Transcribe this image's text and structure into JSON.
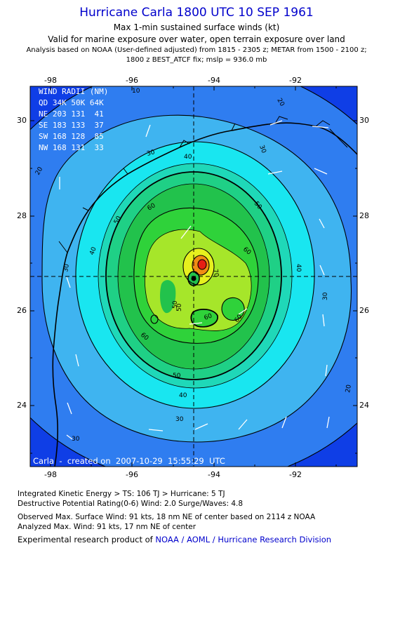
{
  "header": {
    "title": "Hurricane Carla 1800 UTC 10 SEP 1961",
    "subtitle": "Max 1-min sustained surface winds (kt)",
    "validity": "Valid for marine exposure over water, open terrain exposure over land",
    "analysis": "Analysis based on  NOAA (User-defined adjusted) from 1815 - 2305 z;  METAR from 1500 - 2100 z;",
    "fix": "1800 z BEST_ATCF fix; mslp = 936.0 mb"
  },
  "map": {
    "lon_ticks": [
      "-98",
      "-96",
      "-94",
      "-92"
    ],
    "lat_ticks": [
      "30",
      "28",
      "26",
      "24"
    ],
    "center": {
      "lon": -94.0,
      "lat": 26.7
    },
    "contour_labels": [
      "10",
      "20",
      "20",
      "20",
      "30",
      "30",
      "30",
      "30",
      "30",
      "30",
      "40",
      "40",
      "40",
      "40",
      "50",
      "50",
      "50",
      "50",
      "60",
      "60",
      "60",
      "60",
      "60",
      "70",
      "50"
    ],
    "wind_radii": {
      "title": "WIND RADII (NM)",
      "header": "QD 34K 50K 64K",
      "rows": [
        "NE 203 131  41",
        "SE 183 133  37",
        "SW 168 128  85",
        "NW 168 131  33"
      ]
    },
    "footer": "Carla  -  created on  2007-10-29  15:55:29  UTC",
    "colors": {
      "blue_dark": "#0f3ee6",
      "blue": "#2f7df0",
      "blue_light": "#3fb4f0",
      "cyan": "#19e6f0",
      "aqua": "#1fd8b8",
      "green_cyan": "#1fd086",
      "green": "#22c24c",
      "green_bright": "#2fd23a",
      "yellow_green": "#a6e62a",
      "yellow": "#e6f01e",
      "orange": "#f08c14",
      "red": "#e61e14"
    }
  },
  "stats": {
    "ike": "Integrated Kinetic Energy > TS: 106 TJ   > Hurricane: 5 TJ",
    "dpr": "Destructive Potential Rating(0-6)   Wind: 2.0 Surge/Waves: 4.8",
    "observed": "Observed Max. Surface Wind: 91 kts, 18 nm NE of center based on 2114 z NOAA",
    "analyzed": "Analyzed Max. Wind: 91 kts, 17 nm NE of center"
  },
  "credit": {
    "prefix": "Experimental research product of ",
    "link": "NOAA / AOML / Hurricane Research Division"
  }
}
